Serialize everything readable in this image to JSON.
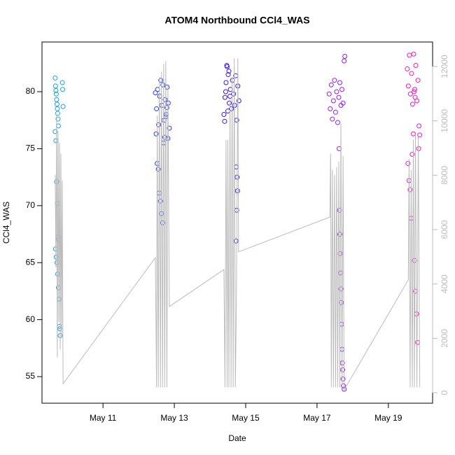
{
  "chart_data": {
    "type": "scatter",
    "title": "ATOM4 Northbound CCl4_WAS",
    "x_label": "Date",
    "y_label": "CCl4_WAS",
    "xlim": [
      9.29,
      20.24
    ],
    "xticks": [
      {
        "value": 11,
        "label": "May 11"
      },
      {
        "value": 13,
        "label": "May 13"
      },
      {
        "value": 15,
        "label": "May 15"
      },
      {
        "value": 17,
        "label": "May 17"
      },
      {
        "value": 19,
        "label": "May 19"
      }
    ],
    "ylim": [
      52.67,
      84.36
    ],
    "yticks": [
      55,
      60,
      65,
      70,
      75,
      80
    ],
    "y2lim": [
      -386,
      12901
    ],
    "y2ticks": [
      0,
      2000,
      4000,
      6000,
      8000,
      10000,
      12000
    ],
    "y2_color": "#bbbbbb",
    "series": [
      {
        "color": "#1f9fe0",
        "x": [
          9.66,
          9.67,
          9.68,
          9.69,
          9.7,
          9.71,
          9.72,
          9.73,
          9.74,
          9.75,
          9.66,
          9.68,
          9.7,
          9.72,
          9.74,
          9.76,
          9.67,
          9.69,
          9.71,
          9.73,
          9.75,
          9.77,
          9.78,
          9.79,
          9.8,
          9.86,
          9.87,
          9.88
        ],
        "values": [
          81.2,
          80.5,
          80.1,
          79.8,
          79.3,
          78.9,
          78.5,
          78.1,
          77.6,
          77.0,
          76.5,
          75.7,
          72.1,
          70.2,
          67.3,
          67.0,
          66.2,
          65.5,
          65.0,
          64.0,
          62.8,
          61.8,
          59.4,
          59.2,
          58.6,
          80.8,
          80.2,
          78.7
        ]
      },
      {
        "color": "#2a40ef",
        "x": [
          12.47,
          12.5,
          12.53,
          12.56,
          12.59,
          12.62,
          12.65,
          12.68,
          12.71,
          12.74,
          12.77,
          12.8,
          12.83,
          12.86,
          12.49,
          12.52,
          12.55,
          12.58,
          12.61,
          12.64,
          12.67,
          12.7,
          12.73,
          12.76,
          12.79,
          12.82
        ],
        "values": [
          79.9,
          78.5,
          80.2,
          77.1,
          79.6,
          81.0,
          78.8,
          80.6,
          77.5,
          79.3,
          78.0,
          80.4,
          79.0,
          76.8,
          76.3,
          73.7,
          73.2,
          71.1,
          70.4,
          69.3,
          68.5,
          75.5,
          76.0,
          77.8,
          78.6,
          75.9
        ]
      },
      {
        "color": "#3a17ea",
        "x": [
          14.39,
          14.42,
          14.45,
          14.48,
          14.51,
          14.54,
          14.57,
          14.6,
          14.63,
          14.66,
          14.69,
          14.72,
          14.75,
          14.78,
          14.81,
          14.41,
          14.44,
          14.47,
          14.5,
          14.53,
          14.56,
          14.74,
          14.76,
          14.77,
          14.75,
          14.73
        ],
        "values": [
          78.0,
          79.5,
          80.8,
          82.2,
          81.5,
          79.0,
          80.2,
          78.5,
          81.0,
          79.8,
          78.8,
          81.4,
          77.5,
          80.5,
          79.2,
          77.4,
          80.0,
          82.3,
          78.3,
          81.8,
          79.6,
          73.4,
          72.5,
          71.3,
          69.6,
          66.9
        ]
      },
      {
        "color": "#9a1ee8",
        "x": [
          17.34,
          17.37,
          17.4,
          17.43,
          17.46,
          17.49,
          17.52,
          17.55,
          17.58,
          17.61,
          17.64,
          17.67,
          17.7,
          17.73,
          17.76,
          17.78,
          17.62,
          17.63,
          17.64,
          17.65,
          17.66,
          17.67,
          17.68,
          17.69,
          17.7,
          17.71,
          17.72,
          17.73,
          17.74,
          17.76
        ],
        "values": [
          79.8,
          78.5,
          80.6,
          77.6,
          79.2,
          81.0,
          78.2,
          80.0,
          77.3,
          79.5,
          80.8,
          78.8,
          80.2,
          79.0,
          82.7,
          83.1,
          75.0,
          69.6,
          67.5,
          65.8,
          64.1,
          62.7,
          61.5,
          59.6,
          57.4,
          56.2,
          55.6,
          54.8,
          54.2,
          53.9
        ]
      },
      {
        "color": "#ee19c7",
        "x": [
          19.53,
          19.56,
          19.59,
          19.62,
          19.65,
          19.68,
          19.71,
          19.74,
          19.77,
          19.8,
          19.83,
          19.86,
          19.88,
          19.55,
          19.58,
          19.61,
          19.64,
          19.67,
          19.7,
          19.73,
          19.76,
          19.79,
          19.82,
          19.85,
          19.72,
          19.75
        ],
        "values": [
          82.0,
          80.5,
          83.2,
          79.8,
          81.6,
          78.9,
          83.3,
          80.2,
          82.3,
          79.2,
          81.0,
          77.0,
          76.2,
          73.7,
          72.2,
          71.4,
          68.9,
          74.5,
          76.3,
          65.2,
          62.5,
          60.5,
          58.0,
          75.0,
          80.0,
          79.5
        ]
      },
      {
        "type": "line",
        "axis": "y2",
        "color": "#bbbbbb",
        "x": [
          9.66,
          9.68,
          9.7,
          9.72,
          9.74,
          9.76,
          9.78,
          9.8,
          9.82,
          9.84,
          9.86,
          9.88,
          12.47,
          12.5,
          12.52,
          12.55,
          12.58,
          12.61,
          12.64,
          12.67,
          12.7,
          12.73,
          12.76,
          12.79,
          12.82,
          12.86,
          14.39,
          14.42,
          14.45,
          14.48,
          14.5,
          14.53,
          14.56,
          14.59,
          14.62,
          14.65,
          14.68,
          14.71,
          14.74,
          14.78,
          14.8,
          17.36,
          17.38,
          17.4,
          17.43,
          17.46,
          17.49,
          17.52,
          17.55,
          17.58,
          17.61,
          17.64,
          17.67,
          17.7,
          17.73,
          17.76,
          19.56,
          19.58,
          19.61,
          19.64,
          19.67,
          19.7,
          19.73,
          19.76,
          19.8,
          19.84,
          19.88
        ],
        "values": [
          8000,
          4600,
          10200,
          1300,
          9600,
          2600,
          9200,
          1600,
          8800,
          2000,
          7800,
          330,
          4970,
          200,
          10200,
          200,
          11600,
          200,
          11800,
          200,
          12100,
          200,
          12200,
          200,
          11300,
          3170,
          4530,
          200,
          9300,
          200,
          9300,
          200,
          10800,
          200,
          11600,
          200,
          12300,
          200,
          3300,
          12300,
          5180,
          6460,
          8800,
          200,
          8200,
          200,
          8000,
          200,
          8300,
          200,
          8500,
          200,
          9900,
          200,
          8700,
          100,
          4150,
          8600,
          200,
          8200,
          200,
          9300,
          200,
          9500,
          200,
          9400,
          200
        ]
      }
    ]
  }
}
